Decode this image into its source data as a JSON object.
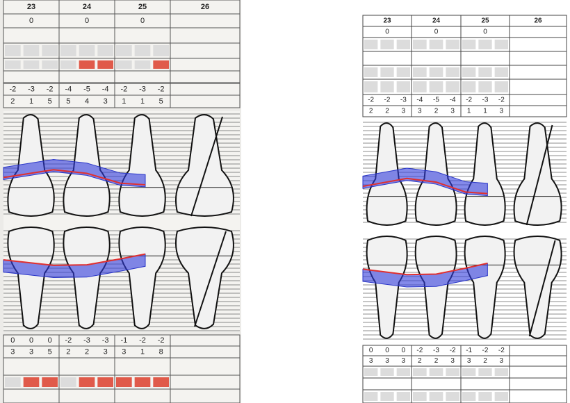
{
  "left": {
    "upper": {
      "teeth": [
        "23",
        "24",
        "25",
        "26"
      ],
      "cej": [
        "0",
        "0",
        "0"
      ],
      "gingival": [
        "-2",
        "-3",
        "-2",
        "-4",
        "-5",
        "-4",
        "-2",
        "-3",
        "-2"
      ],
      "probing": [
        "2",
        "1",
        "5",
        "5",
        "4",
        "3",
        "1",
        "1",
        "5"
      ]
    },
    "lower": {
      "gingival": [
        "0",
        "0",
        "0",
        "-2",
        "-3",
        "-3",
        "-1",
        "-2",
        "-2"
      ],
      "probing": [
        "3",
        "3",
        "5",
        "2",
        "2",
        "3",
        "3",
        "1",
        "8"
      ]
    }
  },
  "right": {
    "upper": {
      "teeth": [
        "23",
        "24",
        "25",
        "26"
      ],
      "cej": [
        "0",
        "0",
        "0"
      ],
      "gingival": [
        "-2",
        "-2",
        "-3",
        "-4",
        "-5",
        "-4",
        "-2",
        "-3",
        "-2"
      ],
      "probing": [
        "2",
        "2",
        "3",
        "3",
        "2",
        "3",
        "1",
        "1",
        "3"
      ]
    },
    "lower": {
      "gingival": [
        "0",
        "0",
        "0",
        "-2",
        "-3",
        "-2",
        "-1",
        "-2",
        "-2"
      ],
      "probing": [
        "3",
        "3",
        "3",
        "2",
        "2",
        "3",
        "3",
        "2",
        "3"
      ]
    }
  }
}
